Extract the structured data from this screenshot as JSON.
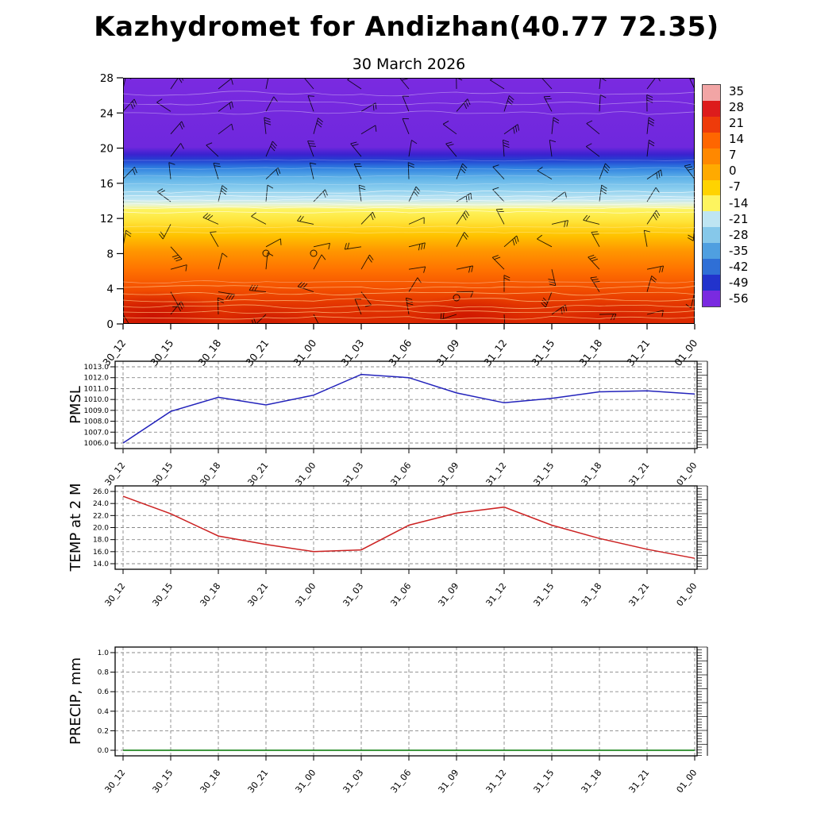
{
  "title": "Kazhydromet for Andizhan(40.77 72.35)",
  "subtitle": "30 March 2026",
  "chart_data": {
    "type": "multi-panel-meteogram",
    "categories": [
      "30_12",
      "30_15",
      "30_18",
      "30_21",
      "31_00",
      "31_03",
      "31_06",
      "31_09",
      "31_12",
      "31_15",
      "31_18",
      "31_21",
      "01_00"
    ],
    "panels": [
      {
        "name": "temperature-height-section",
        "type": "heatmap",
        "title": "30 March 2026",
        "ylim": [
          0,
          28
        ],
        "ytick_labels": [
          "28",
          "24",
          "20",
          "16",
          "12",
          "8",
          "4",
          "0"
        ],
        "overlay": "wind-barbs",
        "profile_heights": [
          0,
          2,
          4,
          6,
          8,
          10,
          12,
          14,
          16,
          18,
          20,
          24,
          28
        ],
        "profile_temps_c": [
          25,
          27,
          18,
          10,
          4,
          -2,
          -8,
          -16,
          -26,
          -38,
          -50,
          -56,
          -57
        ],
        "colorbar": {
          "labels": [
            "35",
            "28",
            "21",
            "14",
            "7",
            "0",
            "-7",
            "-14",
            "-21",
            "-28",
            "-35",
            "-42",
            "-49",
            "-56"
          ],
          "colors": [
            "#f2a5a5",
            "#dd1c1c",
            "#ee3b0a",
            "#ff6600",
            "#ff8800",
            "#ffaa00",
            "#ffd300",
            "#fdf45f",
            "#bfe5f2",
            "#86c8ea",
            "#4f9fe0",
            "#2f6fd6",
            "#2233cc",
            "#7a2ae0"
          ]
        },
        "gradient_stops": [
          {
            "pos": 0,
            "color": "#7a2ae0"
          },
          {
            "pos": 28,
            "color": "#6f28dd"
          },
          {
            "pos": 31,
            "color": "#3a22cf"
          },
          {
            "pos": 33.5,
            "color": "#2342d2"
          },
          {
            "pos": 36.5,
            "color": "#2f7fe0"
          },
          {
            "pos": 40.5,
            "color": "#5fb2e8"
          },
          {
            "pos": 45.5,
            "color": "#8ed0ef"
          },
          {
            "pos": 49.5,
            "color": "#c2e7f3"
          },
          {
            "pos": 52,
            "color": "#eef6c8"
          },
          {
            "pos": 53.5,
            "color": "#fdf45f"
          },
          {
            "pos": 58,
            "color": "#ffe53c"
          },
          {
            "pos": 64,
            "color": "#ffc400"
          },
          {
            "pos": 70,
            "color": "#ff9900"
          },
          {
            "pos": 78,
            "color": "#ff7300"
          },
          {
            "pos": 85,
            "color": "#f55300"
          },
          {
            "pos": 93,
            "color": "#e23300"
          },
          {
            "pos": 100,
            "color": "#db2800"
          }
        ]
      },
      {
        "name": "PMSL",
        "type": "line",
        "color": "#2222bb",
        "ylim": [
          1006,
          1013
        ],
        "ytick_labels": [
          "1013.0",
          "1012.0",
          "1011.0",
          "1010.0",
          "1009.0",
          "1008.0",
          "1007.0",
          "1006.0"
        ],
        "values": [
          1006.0,
          1008.9,
          1010.2,
          1009.5,
          1010.4,
          1012.3,
          1012.0,
          1010.6,
          1009.7,
          1010.1,
          1010.7,
          1010.8,
          1010.5
        ]
      },
      {
        "name": "TEMP at 2 M",
        "type": "line",
        "color": "#cc2222",
        "ylim": [
          14,
          26
        ],
        "ytick_labels": [
          "26.0",
          "24.0",
          "22.0",
          "20.0",
          "18.0",
          "16.0",
          "14.0"
        ],
        "values": [
          25.2,
          22.3,
          18.6,
          17.2,
          16.0,
          16.3,
          20.4,
          22.4,
          23.4,
          20.4,
          18.2,
          16.4,
          14.9
        ]
      },
      {
        "name": "PRECIP, mm",
        "type": "line",
        "color": "#007700",
        "ylim": [
          0,
          1
        ],
        "ytick_labels": [
          "1.0",
          "0.8",
          "0.6",
          "0.4",
          "0.2",
          "0.0"
        ],
        "values": [
          0,
          0,
          0,
          0,
          0,
          0,
          0,
          0,
          0,
          0,
          0,
          0,
          0
        ]
      }
    ]
  }
}
